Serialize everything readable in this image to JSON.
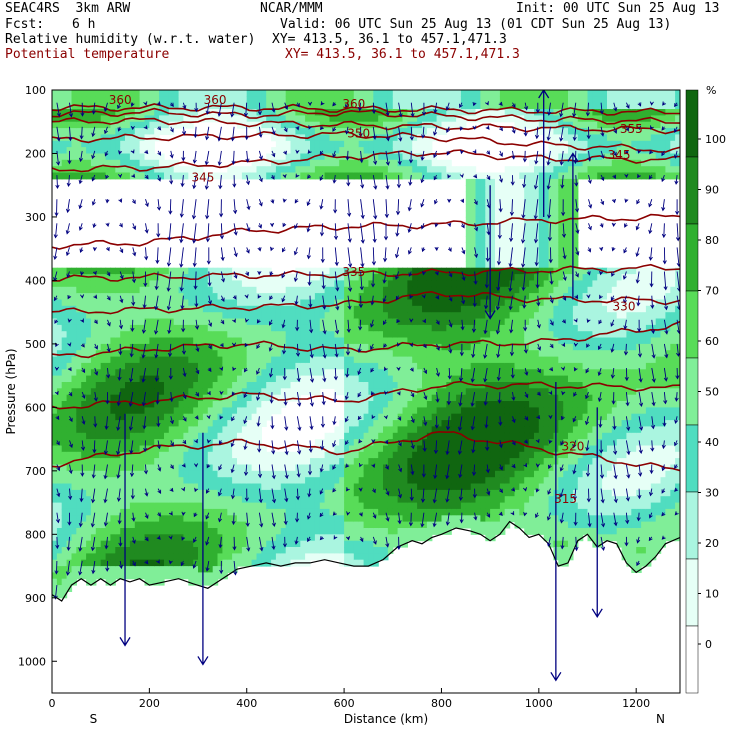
{
  "header": {
    "model": "SEAC4RS  3km ARW",
    "org": "NCAR/MMM",
    "init": "Init: 00 UTC Sun 25 Aug 13",
    "fcst_label": "Fcst:",
    "fcst_value": "6 h",
    "valid": "Valid: 06 UTC Sun 25 Aug 13 (01 CDT Sun 25 Aug 13)",
    "field1": "Relative humidity (w.r.t. water)",
    "field1_xy": "XY= 413.5, 36.1 to 457.1,471.3",
    "field2": "Potential temperature",
    "field2_xy": "XY= 413.5, 36.1 to 457.1,471.3"
  },
  "colors": {
    "rh": [
      "#ffffff",
      "#e6fff6",
      "#aaf5e0",
      "#50ddc0",
      "#80ee98",
      "#58dc58",
      "#30b030",
      "#208a20",
      "#106610"
    ],
    "theta_line": "#8b0000",
    "wind_arrow": "#000080",
    "terrain": "#000000"
  },
  "chart_data": {
    "type": "contour_cross_section",
    "xlabel": "Distance (km)",
    "ylabel": "Pressure (hPa)",
    "xlim": [
      0,
      1290
    ],
    "ylim": [
      100,
      1050
    ],
    "xticks": [
      0,
      200,
      400,
      600,
      800,
      1000,
      1200
    ],
    "yticks": [
      100,
      200,
      300,
      400,
      500,
      600,
      700,
      800,
      900,
      1000
    ],
    "end_labels": {
      "left": "S",
      "right": "N"
    },
    "colorbar": {
      "unit": "%",
      "ticks": [
        0,
        10,
        20,
        30,
        40,
        50,
        60,
        70,
        80,
        90,
        100
      ],
      "levels": [
        -10,
        25,
        35,
        45,
        55,
        65,
        75,
        85,
        95,
        110
      ]
    },
    "theta_contours": [
      {
        "value": 360,
        "x": [
          0,
          200,
          400,
          600,
          800,
          1000,
          1290
        ],
        "p": [
          128,
          128,
          128,
          130,
          131,
          133,
          135
        ]
      },
      {
        "value": 360,
        "x": [
          0,
          200,
          400,
          600,
          800,
          1000,
          1290
        ],
        "p": [
          138,
          135,
          140,
          135,
          141,
          146,
          150
        ]
      },
      {
        "value": 355,
        "x": [
          0,
          200,
          400,
          600,
          800,
          1000,
          1290
        ],
        "p": [
          150,
          148,
          152,
          155,
          158,
          160,
          163
        ]
      },
      {
        "value": 350,
        "x": [
          0,
          200,
          400,
          600,
          800,
          1000,
          1290
        ],
        "p": [
          178,
          175,
          172,
          170,
          175,
          186,
          195
        ]
      },
      {
        "value": 345,
        "x": [
          0,
          200,
          400,
          600,
          800,
          1000,
          1290
        ],
        "p": [
          225,
          222,
          215,
          205,
          198,
          208,
          210
        ]
      },
      {
        "value": 340,
        "x": [
          0,
          200,
          400,
          600,
          800,
          1000,
          1290
        ],
        "p": [
          345,
          340,
          322,
          315,
          312,
          305,
          300
        ]
      },
      {
        "value": 335,
        "x": [
          0,
          200,
          400,
          600,
          800,
          1000,
          1290
        ],
        "p": [
          397,
          395,
          392,
          390,
          388,
          384,
          380
        ]
      },
      {
        "value": 330,
        "x": [
          0,
          200,
          400,
          600,
          800,
          1000,
          1290
        ],
        "p": [
          450,
          446,
          442,
          438,
          420,
          430,
          432
        ]
      },
      {
        "value": 325,
        "x": [
          0,
          200,
          400,
          600,
          800,
          1000,
          1290
        ],
        "p": [
          520,
          508,
          500,
          510,
          500,
          498,
          470
        ]
      },
      {
        "value": 320,
        "x": [
          0,
          200,
          400,
          600,
          800,
          1000,
          1290
        ],
        "p": [
          600,
          590,
          580,
          590,
          565,
          565,
          570
        ]
      },
      {
        "value": 315,
        "x": [
          0,
          200,
          400,
          600,
          800,
          1000,
          1290
        ],
        "p": [
          690,
          665,
          655,
          670,
          640,
          665,
          700
        ]
      }
    ],
    "contour_labels": [
      {
        "text": "360",
        "x": 140,
        "p": 122
      },
      {
        "text": "360",
        "x": 335,
        "p": 122
      },
      {
        "text": "360",
        "x": 620,
        "p": 128
      },
      {
        "text": "355",
        "x": 1190,
        "p": 168
      },
      {
        "text": "350",
        "x": 630,
        "p": 175
      },
      {
        "text": "345",
        "x": 1165,
        "p": 209
      },
      {
        "text": "345",
        "x": 310,
        "p": 244
      },
      {
        "text": "335",
        "x": 620,
        "p": 393
      },
      {
        "text": "330",
        "x": 1175,
        "p": 447
      },
      {
        "text": "320",
        "x": 1070,
        "p": 668
      },
      {
        "text": "315",
        "x": 1055,
        "p": 751
      }
    ]
  }
}
